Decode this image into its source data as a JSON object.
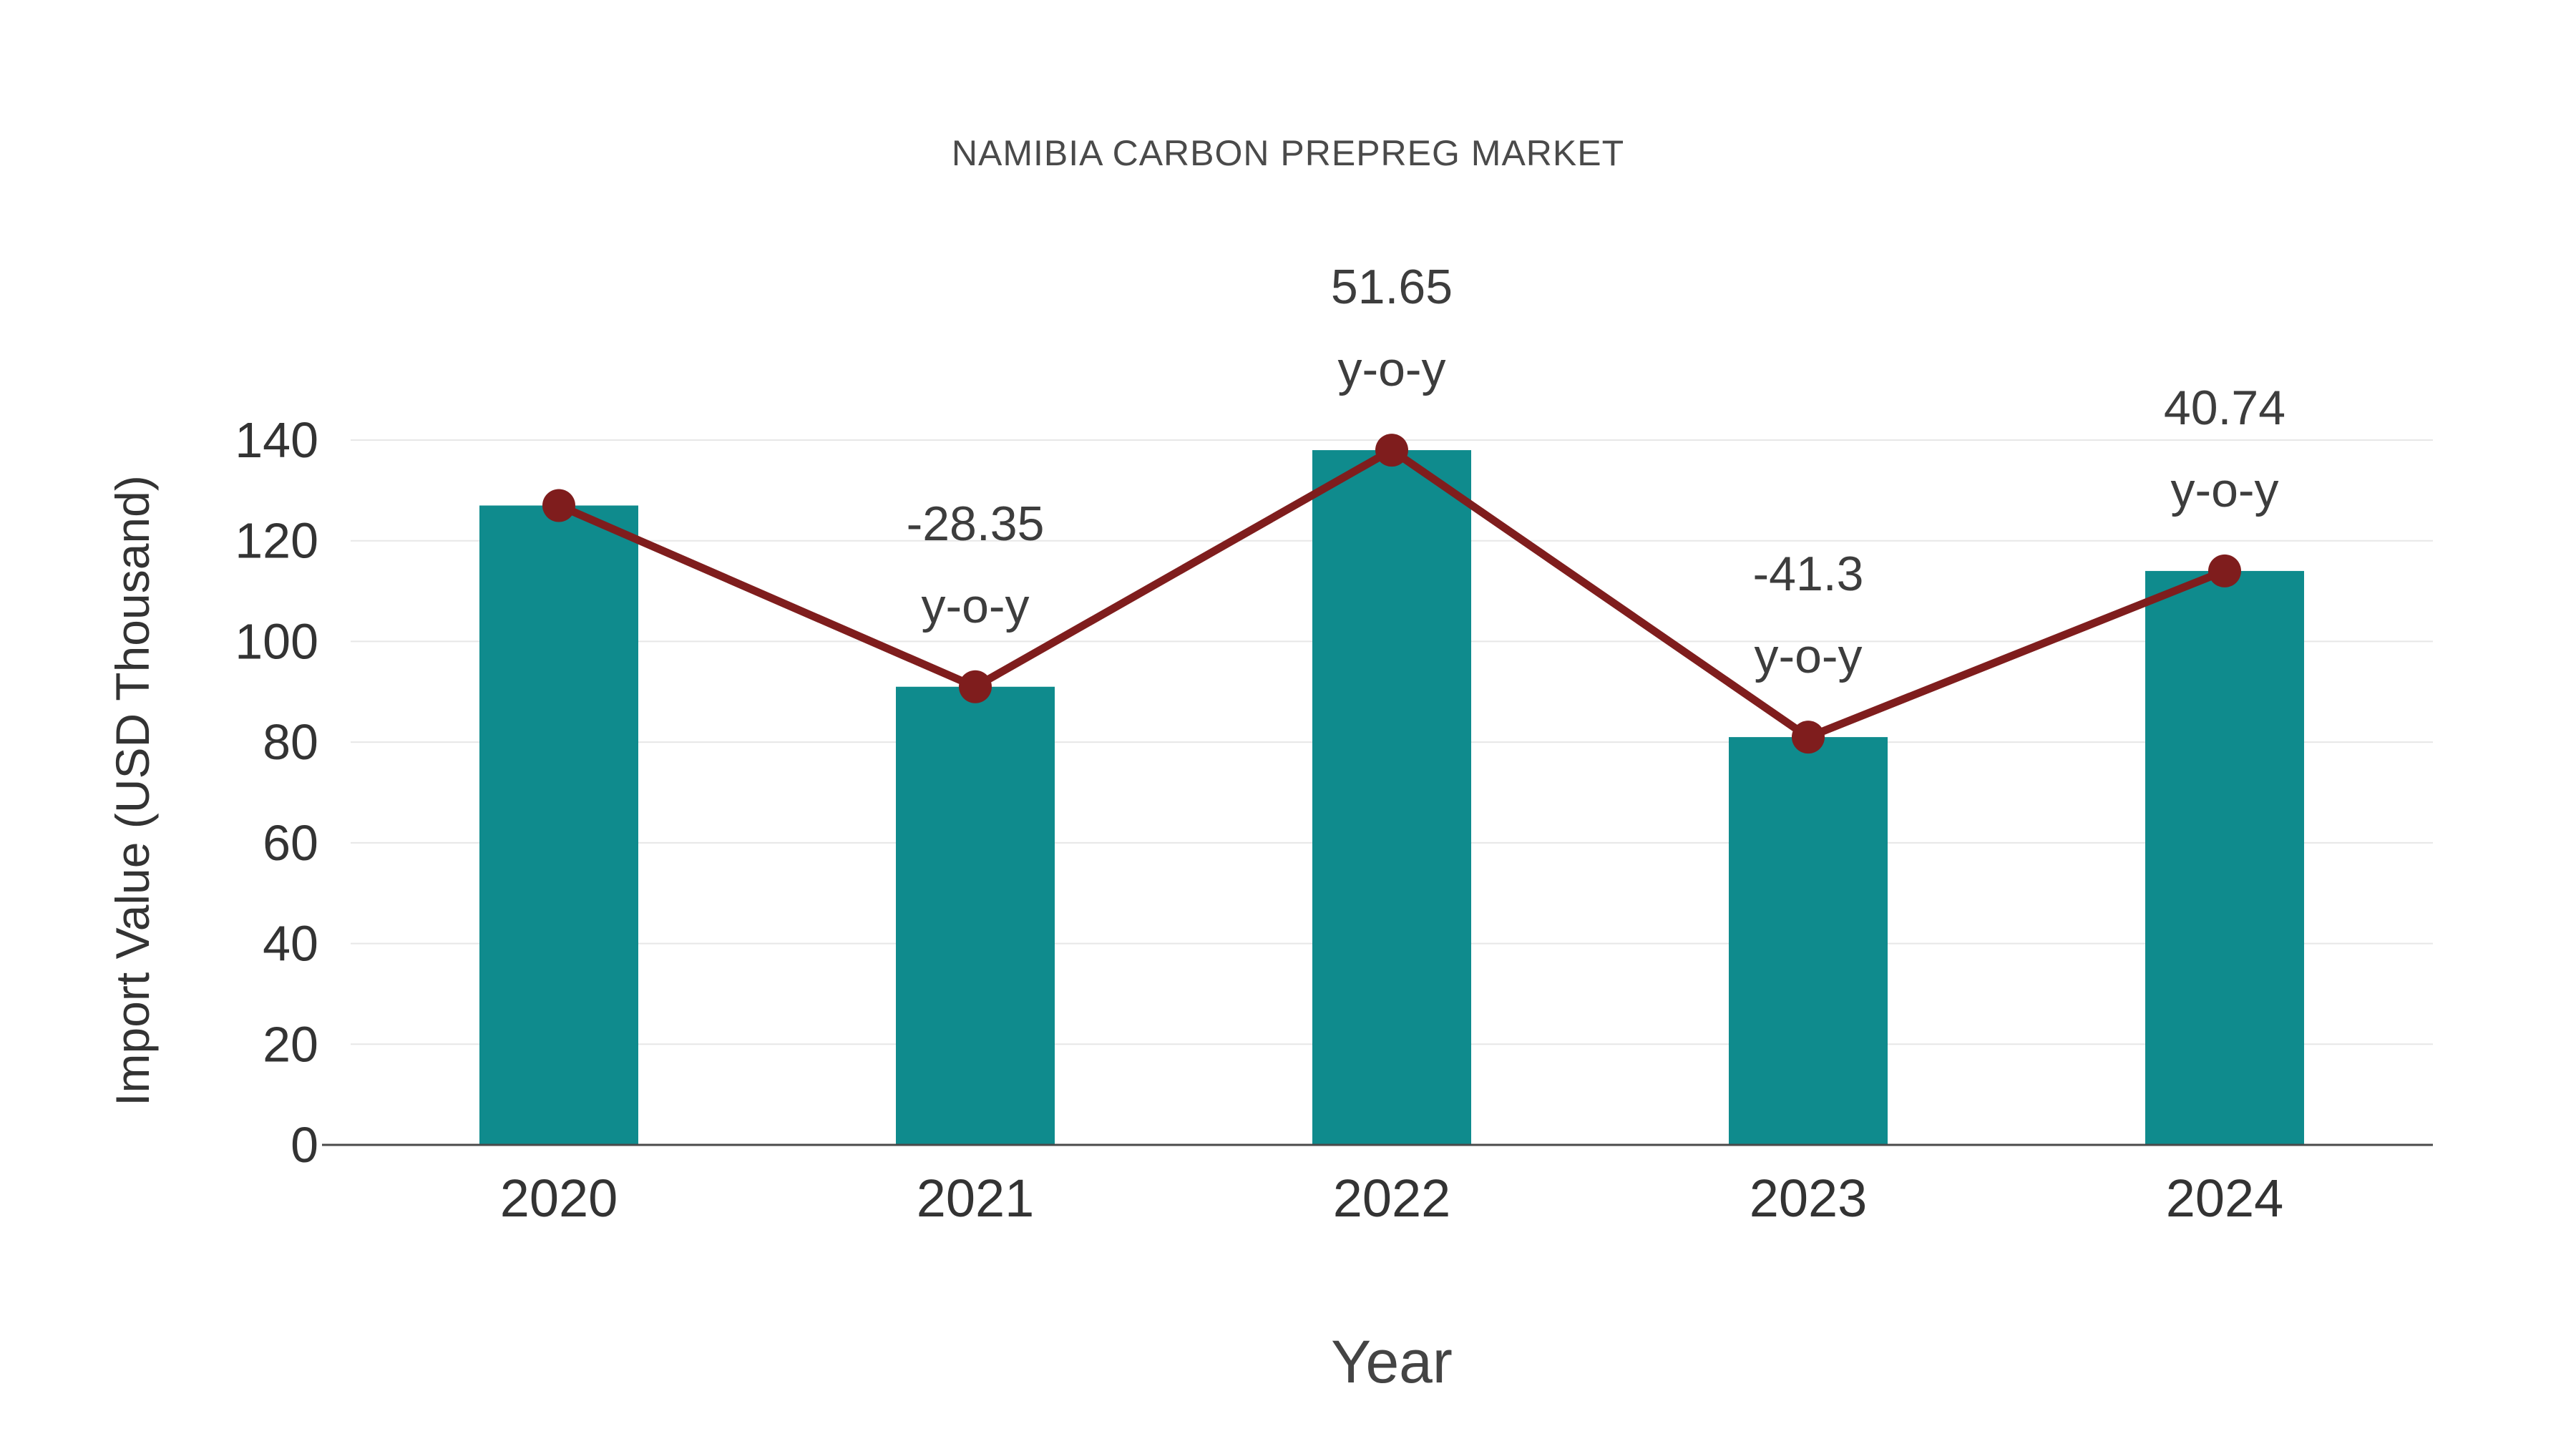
{
  "title": "NAMIBIA CARBON PREPREG MARKET",
  "chart_data": {
    "type": "bar",
    "title": "NAMIBIA CARBON PREPREG MARKET",
    "xlabel": "Year",
    "ylabel": "Import Value (USD Thousand)",
    "categories": [
      "2020",
      "2021",
      "2022",
      "2023",
      "2024"
    ],
    "series": [
      {
        "name": "Import Value",
        "type": "bar",
        "values": [
          127,
          91,
          138,
          81,
          114
        ],
        "color": "#0f8b8d"
      },
      {
        "name": "Y-o-Y Growth Line",
        "type": "line",
        "values": [
          127,
          91,
          138,
          81,
          114
        ],
        "color": "#7f1d1d"
      }
    ],
    "yoy_annotations": [
      null,
      {
        "value": "-28.35",
        "suffix": "y-o-y"
      },
      {
        "value": "51.65",
        "suffix": "y-o-y"
      },
      {
        "value": "-41.3",
        "suffix": "y-o-y"
      },
      {
        "value": "40.74",
        "suffix": "y-o-y"
      }
    ],
    "ylim": [
      0,
      140
    ],
    "ytick_step": 20,
    "grid": true,
    "legend_position": "none"
  },
  "colors": {
    "bar": "#0f8b8d",
    "line": "#7f1d1d",
    "marker": "#7f1d1d",
    "grid": "#e7e7e7",
    "axis": "#4a4a4a",
    "tick_text": "#333333",
    "annotation_text": "#3d3d3d",
    "title_text": "#4a4a4a"
  }
}
